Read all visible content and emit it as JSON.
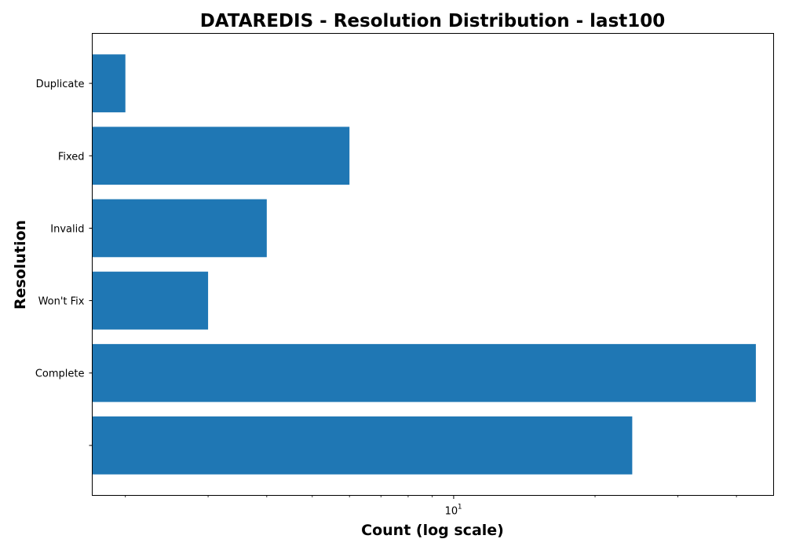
{
  "chart_data": {
    "type": "bar",
    "orientation": "horizontal",
    "title": "DATAREDIS - Resolution Distribution - last100",
    "xlabel": "Count (log scale)",
    "ylabel": "Resolution",
    "x_scale": "log",
    "xlim": [
      1.7,
      48
    ],
    "categories": [
      "Duplicate",
      "Fixed",
      "Invalid",
      "Won't Fix",
      "Complete",
      ""
    ],
    "values": [
      2,
      6,
      4,
      3,
      44,
      24
    ],
    "x_major_ticks": [
      {
        "value": 10,
        "base": "10",
        "exponent": "1"
      }
    ],
    "x_minor_ticks": [
      2,
      3,
      4,
      5,
      6,
      7,
      8,
      9,
      20,
      30,
      40
    ],
    "bar_color": "#1f77b4",
    "grid": false,
    "legend": "none"
  }
}
